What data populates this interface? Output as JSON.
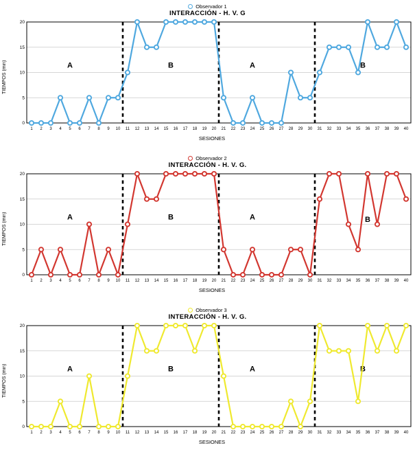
{
  "page": {
    "background": "#ffffff"
  },
  "chart_data": [
    {
      "type": "line",
      "legend": "Observador 1",
      "title": "INTERACCIÓN - H. V. G",
      "xlabel": "SESIONES",
      "ylabel": "TIEMPOS (min)",
      "color": "#4FA8DF",
      "marker": "open-circle",
      "grid": "horizontal",
      "legend_position": "top-center",
      "ylim": [
        0,
        20
      ],
      "y_ticks": [
        0,
        5,
        10,
        15,
        20
      ],
      "x": [
        1,
        2,
        3,
        4,
        5,
        6,
        7,
        8,
        9,
        10,
        11,
        12,
        13,
        14,
        15,
        16,
        17,
        18,
        19,
        20,
        21,
        22,
        23,
        24,
        25,
        26,
        27,
        28,
        29,
        30,
        31,
        32,
        33,
        34,
        35,
        36,
        37,
        38,
        39,
        40
      ],
      "values": [
        0,
        0,
        0,
        5,
        0,
        0,
        5,
        0,
        5,
        5,
        10,
        20,
        15,
        15,
        20,
        20,
        20,
        20,
        20,
        20,
        5,
        0,
        0,
        5,
        0,
        0,
        0,
        10,
        5,
        5,
        10,
        15,
        15,
        15,
        10,
        20,
        15,
        15,
        20,
        15
      ],
      "phase_lines_x": [
        10.5,
        20.5,
        30.5
      ],
      "phase_labels": [
        {
          "label": "A",
          "x": 5,
          "y": 11.5
        },
        {
          "label": "B",
          "x": 15.5,
          "y": 11.5
        },
        {
          "label": "A",
          "x": 24,
          "y": 11.5
        },
        {
          "label": "B",
          "x": 35.5,
          "y": 11.5
        }
      ]
    },
    {
      "type": "line",
      "legend": "Observador 2",
      "title": "INTERACCIÓN - H. V. G.",
      "xlabel": "SESIONES",
      "ylabel": "TIEMPOS (min)",
      "color": "#D23730",
      "marker": "open-circle",
      "grid": "horizontal",
      "legend_position": "top-center",
      "ylim": [
        0,
        20
      ],
      "y_ticks": [
        0,
        5,
        10,
        15,
        20
      ],
      "x": [
        1,
        2,
        3,
        4,
        5,
        6,
        7,
        8,
        9,
        10,
        11,
        12,
        13,
        14,
        15,
        16,
        17,
        18,
        19,
        20,
        21,
        22,
        23,
        24,
        25,
        26,
        27,
        28,
        29,
        30,
        31,
        32,
        33,
        34,
        35,
        36,
        37,
        38,
        39,
        40
      ],
      "values": [
        0,
        5,
        0,
        5,
        0,
        0,
        10,
        0,
        5,
        0,
        10,
        20,
        15,
        15,
        20,
        20,
        20,
        20,
        20,
        20,
        5,
        0,
        0,
        5,
        0,
        0,
        0,
        5,
        5,
        0,
        15,
        20,
        20,
        10,
        5,
        20,
        10,
        20,
        20,
        15
      ],
      "phase_lines_x": [
        10.5,
        20.5,
        30.5
      ],
      "phase_labels": [
        {
          "label": "A",
          "x": 5,
          "y": 11.5
        },
        {
          "label": "B",
          "x": 15.5,
          "y": 11.5
        },
        {
          "label": "A",
          "x": 24,
          "y": 11.5
        },
        {
          "label": "B",
          "x": 36,
          "y": 11
        }
      ]
    },
    {
      "type": "line",
      "legend": "Observador 3",
      "title": "INTERACCIÓN - H. V. G.",
      "xlabel": "SESIONES",
      "ylabel": "TIEMPOS (min)",
      "color": "#EFE92F",
      "marker": "open-circle",
      "grid": "horizontal",
      "legend_position": "top-center",
      "ylim": [
        0,
        20
      ],
      "y_ticks": [
        0,
        5,
        10,
        15,
        20
      ],
      "x": [
        1,
        2,
        3,
        4,
        5,
        6,
        7,
        8,
        9,
        10,
        11,
        12,
        13,
        14,
        15,
        16,
        17,
        18,
        19,
        20,
        21,
        22,
        23,
        24,
        25,
        26,
        27,
        28,
        29,
        30,
        31,
        32,
        33,
        34,
        35,
        36,
        37,
        38,
        39,
        40
      ],
      "values": [
        0,
        0,
        0,
        5,
        0,
        0,
        10,
        0,
        0,
        0,
        10,
        20,
        15,
        15,
        20,
        20,
        20,
        15,
        20,
        20,
        10,
        0,
        0,
        0,
        0,
        0,
        0,
        5,
        0,
        5,
        20,
        15,
        15,
        15,
        5,
        20,
        15,
        20,
        15,
        20
      ],
      "phase_lines_x": [
        10.5,
        20.5,
        30.5
      ],
      "phase_labels": [
        {
          "label": "A",
          "x": 5,
          "y": 11.5
        },
        {
          "label": "B",
          "x": 15.5,
          "y": 11.5
        },
        {
          "label": "A",
          "x": 24,
          "y": 11.5
        },
        {
          "label": "B",
          "x": 35.5,
          "y": 11.5
        }
      ]
    }
  ]
}
